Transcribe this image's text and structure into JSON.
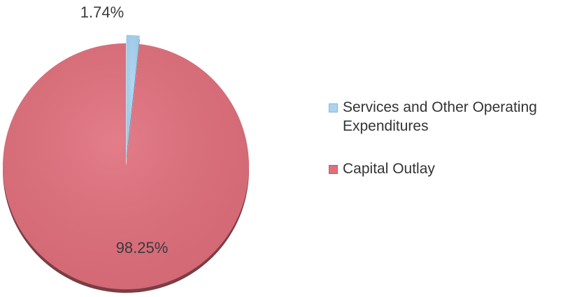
{
  "chart_data": {
    "type": "pie",
    "title": "",
    "slices": [
      {
        "label": "Services and Other Operating Expenditures",
        "value": 1.74,
        "value_label": "1.74%",
        "color": "#a8d4f2"
      },
      {
        "label": "Capital Outlay",
        "value": 98.25,
        "value_label": "98.25%",
        "color": "#e06f7c"
      }
    ],
    "legend_position": "right",
    "exploded_slice": "Services and Other Operating Expenditures"
  }
}
